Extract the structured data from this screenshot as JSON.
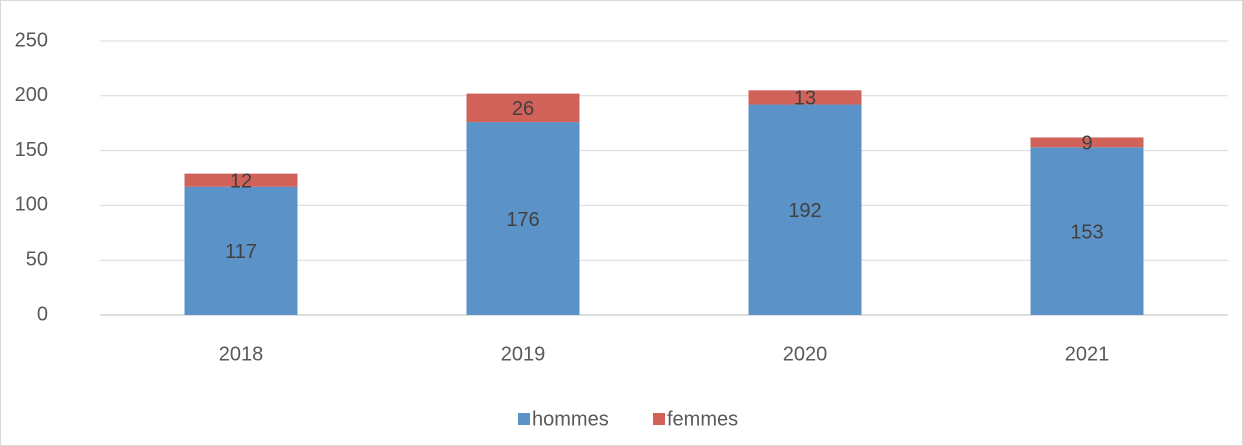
{
  "chart_data": {
    "type": "stacked_bar",
    "categories": [
      "2018",
      "2019",
      "2020",
      "2021"
    ],
    "series": [
      {
        "name": "hommes",
        "color": "#5b93c9",
        "values": [
          117,
          176,
          192,
          153
        ]
      },
      {
        "name": "femmes",
        "color": "#d1625a",
        "values": [
          12,
          26,
          13,
          9
        ]
      }
    ],
    "ylim": [
      0,
      250
    ],
    "yticks": [
      0,
      50,
      100,
      150,
      200,
      250
    ],
    "grid": true,
    "legend": "bottom"
  }
}
